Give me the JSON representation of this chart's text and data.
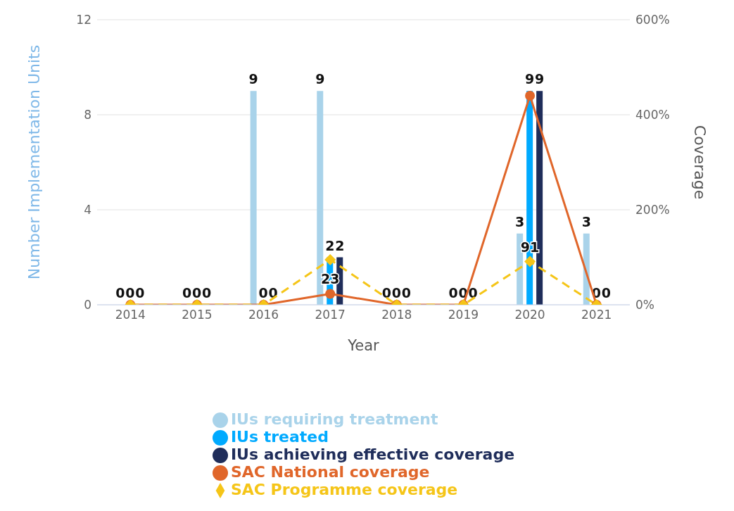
{
  "chart_data": {
    "type": "bar",
    "xlabel": "Year",
    "ylabel": "Number Implementation Units",
    "y2label": "Coverage",
    "categories": [
      "2014",
      "2015",
      "2016",
      "2017",
      "2018",
      "2019",
      "2020",
      "2021"
    ],
    "series": [
      {
        "name": "IUs requiring treatment",
        "color": "#a9d3ea",
        "values": [
          0,
          0,
          9,
          9,
          0,
          0,
          3,
          3
        ],
        "value_labels": [
          "0",
          "0",
          "9",
          "9",
          "0",
          "0",
          "3",
          "3"
        ]
      },
      {
        "name": "IUs treated",
        "color": "#00aaff",
        "values": [
          0,
          0,
          0,
          2,
          0,
          0,
          9,
          0
        ],
        "value_labels": [
          "0",
          "0",
          "0",
          "2",
          "0",
          "0",
          "9",
          "0"
        ]
      },
      {
        "name": "IUs achieving effective coverage",
        "color": "#1f2d5a",
        "values": [
          0,
          0,
          0,
          2,
          0,
          0,
          9,
          0
        ],
        "value_labels": [
          "0",
          "0",
          "0",
          "2",
          "0",
          "0",
          "9",
          "0"
        ]
      },
      {
        "name": "SAC National coverage",
        "type": "line",
        "axis": "y2",
        "color": "#e0662a",
        "marker": "circle",
        "line_style": "solid",
        "values": [
          0,
          0,
          0,
          23,
          0,
          0,
          440,
          0
        ],
        "value_labels": [
          null,
          null,
          null,
          "23",
          null,
          null,
          null,
          null
        ]
      },
      {
        "name": "SAC Programme coverage",
        "type": "line",
        "axis": "y2",
        "color": "#f5c518",
        "marker": "diamond",
        "line_style": "dashed",
        "values": [
          0,
          0,
          0,
          95,
          0,
          0,
          91,
          0
        ],
        "value_labels": [
          null,
          null,
          null,
          null,
          null,
          null,
          "91",
          null
        ]
      }
    ],
    "ylim": [
      0,
      12
    ],
    "yticks": [
      0,
      4,
      8,
      12
    ],
    "y2lim": [
      0,
      600
    ],
    "y2ticks": [
      {
        "value": 0,
        "label": "0%"
      },
      {
        "value": 200,
        "label": "200%"
      },
      {
        "value": 400,
        "label": "400%"
      },
      {
        "value": 600,
        "label": "600%"
      }
    ],
    "grid": "y",
    "legend": "bottom"
  }
}
